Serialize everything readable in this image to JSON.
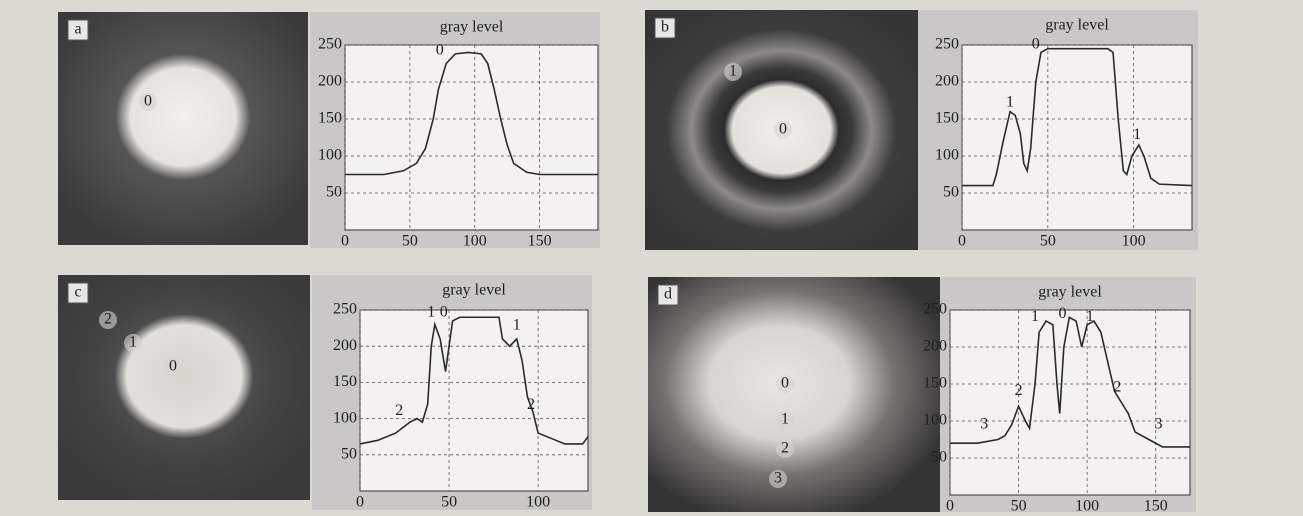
{
  "chart_data": [
    {
      "type": "line",
      "panel": "a",
      "title": "gray level",
      "color": "#2a2a2a",
      "grid": true,
      "x": [
        0,
        30,
        45,
        55,
        62,
        68,
        72,
        78,
        85,
        95,
        105,
        110,
        115,
        120,
        125,
        130,
        140,
        150,
        195
      ],
      "values": [
        75,
        75,
        80,
        90,
        110,
        150,
        190,
        225,
        238,
        240,
        238,
        225,
        190,
        150,
        115,
        90,
        78,
        75,
        75
      ],
      "xlim": [
        0,
        195
      ],
      "xticks": [
        0,
        50,
        100,
        150
      ],
      "ylim": [
        0,
        250
      ],
      "yticks": [
        50,
        100,
        150,
        200,
        250
      ],
      "annotations": [
        {
          "text": "0",
          "x": 73,
          "y": 242
        }
      ],
      "image_labels": [
        "0"
      ]
    },
    {
      "type": "line",
      "panel": "b",
      "title": "gray level",
      "color": "#2a2a2a",
      "grid": true,
      "x": [
        0,
        18,
        20,
        24,
        28,
        31,
        34,
        36,
        38,
        40,
        43,
        46,
        50,
        85,
        88,
        91,
        94,
        96,
        99,
        103,
        106,
        110,
        115,
        134
      ],
      "values": [
        60,
        60,
        75,
        120,
        160,
        155,
        130,
        90,
        80,
        110,
        200,
        240,
        245,
        245,
        240,
        150,
        80,
        75,
        100,
        115,
        100,
        70,
        62,
        60
      ],
      "xlim": [
        0,
        134
      ],
      "xticks": [
        0,
        50,
        100
      ],
      "ylim": [
        0,
        250
      ],
      "yticks": [
        50,
        100,
        150,
        200,
        250
      ],
      "annotations": [
        {
          "text": "1",
          "x": 28,
          "y": 172
        },
        {
          "text": "0",
          "x": 43,
          "y": 250
        },
        {
          "text": "1",
          "x": 102,
          "y": 128
        }
      ],
      "image_labels": [
        "1",
        "0"
      ]
    },
    {
      "type": "line",
      "panel": "c",
      "title": "gray level",
      "color": "#2a2a2a",
      "grid": true,
      "x": [
        0,
        10,
        20,
        28,
        32,
        35,
        38,
        40,
        42,
        45,
        48,
        50,
        52,
        56,
        78,
        80,
        84,
        88,
        91,
        94,
        97,
        100,
        110,
        115,
        125,
        128
      ],
      "values": [
        65,
        70,
        80,
        95,
        100,
        95,
        120,
        200,
        230,
        210,
        165,
        200,
        235,
        240,
        240,
        210,
        200,
        210,
        180,
        130,
        110,
        80,
        70,
        65,
        65,
        75
      ],
      "xlim": [
        0,
        128
      ],
      "xticks": [
        0,
        50,
        100
      ],
      "ylim": [
        0,
        250
      ],
      "yticks": [
        50,
        100,
        150,
        200,
        250
      ],
      "annotations": [
        {
          "text": "2",
          "x": 22,
          "y": 110
        },
        {
          "text": "1",
          "x": 40,
          "y": 246
        },
        {
          "text": "0",
          "x": 47,
          "y": 246
        },
        {
          "text": "1",
          "x": 88,
          "y": 228
        },
        {
          "text": "2",
          "x": 96,
          "y": 118
        }
      ],
      "image_labels": [
        "2",
        "1",
        "0"
      ]
    },
    {
      "type": "line",
      "panel": "d",
      "title": "gray level",
      "color": "#2a2a2a",
      "grid": true,
      "x": [
        0,
        20,
        35,
        40,
        45,
        50,
        55,
        58,
        62,
        65,
        70,
        75,
        78,
        80,
        83,
        87,
        92,
        96,
        100,
        105,
        110,
        115,
        120,
        125,
        130,
        135,
        145,
        155,
        175
      ],
      "values": [
        70,
        70,
        75,
        80,
        95,
        120,
        100,
        90,
        150,
        220,
        235,
        230,
        150,
        110,
        200,
        240,
        235,
        200,
        230,
        235,
        220,
        180,
        140,
        125,
        110,
        85,
        75,
        65,
        65
      ],
      "xlim": [
        0,
        175
      ],
      "xticks": [
        0,
        50,
        100,
        150
      ],
      "ylim": [
        0,
        250
      ],
      "yticks": [
        50,
        100,
        150,
        200,
        250
      ],
      "annotations": [
        {
          "text": "3",
          "x": 25,
          "y": 95
        },
        {
          "text": "2",
          "x": 50,
          "y": 140
        },
        {
          "text": "1",
          "x": 62,
          "y": 240
        },
        {
          "text": "0",
          "x": 82,
          "y": 244
        },
        {
          "text": "1",
          "x": 102,
          "y": 240
        },
        {
          "text": "2",
          "x": 122,
          "y": 145
        },
        {
          "text": "3",
          "x": 152,
          "y": 95
        }
      ],
      "image_labels": [
        "0",
        "1",
        "2",
        "3"
      ]
    }
  ]
}
